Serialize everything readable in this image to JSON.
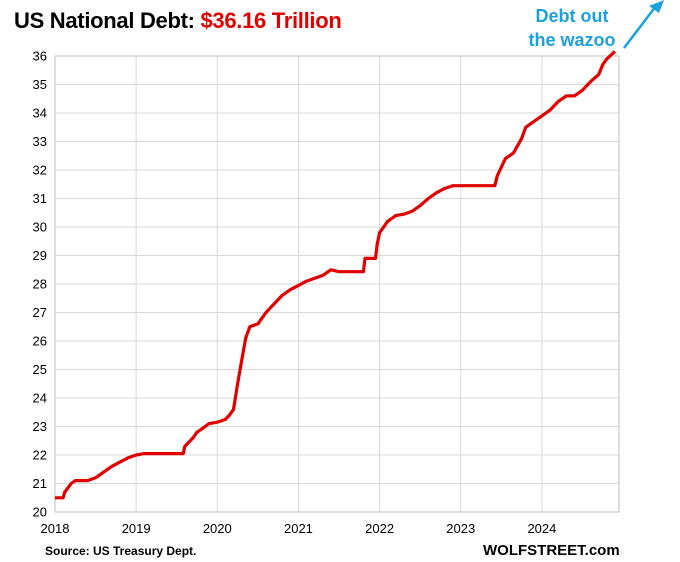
{
  "title_prefix": "US National Debt: ",
  "title_value": "$36.16 Trillion",
  "annotation_line1": "Debt out",
  "annotation_line2": "the wazoo",
  "source": "Source: US Treasury Dept.",
  "brand": "WOLFSTREET.com",
  "colors": {
    "line": "#e00000",
    "title_accent": "#e00000",
    "annotation": "#1ea0dc",
    "grid": "#d9d9d9"
  },
  "chart_data": {
    "type": "line",
    "title": "US National Debt: $36.16 Trillion",
    "xlabel": "",
    "ylabel": "",
    "xlim": [
      2018.0,
      2024.95
    ],
    "ylim": [
      20,
      36
    ],
    "x_ticks": [
      "2018",
      "2019",
      "2020",
      "2021",
      "2022",
      "2023",
      "2024"
    ],
    "y_ticks": [
      20,
      21,
      22,
      23,
      24,
      25,
      26,
      27,
      28,
      29,
      30,
      31,
      32,
      33,
      34,
      35,
      36
    ],
    "grid": true,
    "series": [
      {
        "x": [
          2018.0,
          2018.1,
          2018.12,
          2018.2,
          2018.25,
          2018.3,
          2018.4,
          2018.5,
          2018.6,
          2018.7,
          2018.8,
          2018.9,
          2019.0,
          2019.1,
          2019.15,
          2019.3,
          2019.5,
          2019.58,
          2019.6,
          2019.7,
          2019.75,
          2019.8,
          2019.9,
          2020.0,
          2020.1,
          2020.15,
          2020.2,
          2020.25,
          2020.3,
          2020.35,
          2020.4,
          2020.45,
          2020.5,
          2020.55,
          2020.6,
          2020.7,
          2020.8,
          2020.9,
          2021.0,
          2021.1,
          2021.2,
          2021.3,
          2021.4,
          2021.5,
          2021.52,
          2021.6,
          2021.65,
          2021.8,
          2021.82,
          2021.95,
          2021.97,
          2022.0,
          2022.1,
          2022.2,
          2022.3,
          2022.4,
          2022.5,
          2022.6,
          2022.7,
          2022.8,
          2022.9,
          2023.0,
          2023.1,
          2023.3,
          2023.42,
          2023.45,
          2023.55,
          2023.65,
          2023.75,
          2023.8,
          2023.9,
          2024.0,
          2024.1,
          2024.2,
          2024.3,
          2024.4,
          2024.5,
          2024.6,
          2024.7,
          2024.75,
          2024.8,
          2024.9
        ],
        "y": [
          20.5,
          20.5,
          20.7,
          21.0,
          21.1,
          21.1,
          21.1,
          21.2,
          21.4,
          21.6,
          21.75,
          21.9,
          22.0,
          22.05,
          22.05,
          22.05,
          22.05,
          22.05,
          22.3,
          22.6,
          22.8,
          22.9,
          23.1,
          23.15,
          23.25,
          23.4,
          23.6,
          24.5,
          25.3,
          26.1,
          26.5,
          26.55,
          26.6,
          26.8,
          27.0,
          27.3,
          27.6,
          27.8,
          27.95,
          28.1,
          28.2,
          28.3,
          28.5,
          28.43,
          28.43,
          28.43,
          28.43,
          28.43,
          28.9,
          28.9,
          29.4,
          29.8,
          30.2,
          30.4,
          30.45,
          30.55,
          30.75,
          31.0,
          31.2,
          31.35,
          31.45,
          31.45,
          31.45,
          31.45,
          31.45,
          31.8,
          32.4,
          32.6,
          33.1,
          33.5,
          33.7,
          33.9,
          34.1,
          34.4,
          34.6,
          34.6,
          34.8,
          35.1,
          35.35,
          35.7,
          35.9,
          36.16
        ]
      }
    ]
  }
}
